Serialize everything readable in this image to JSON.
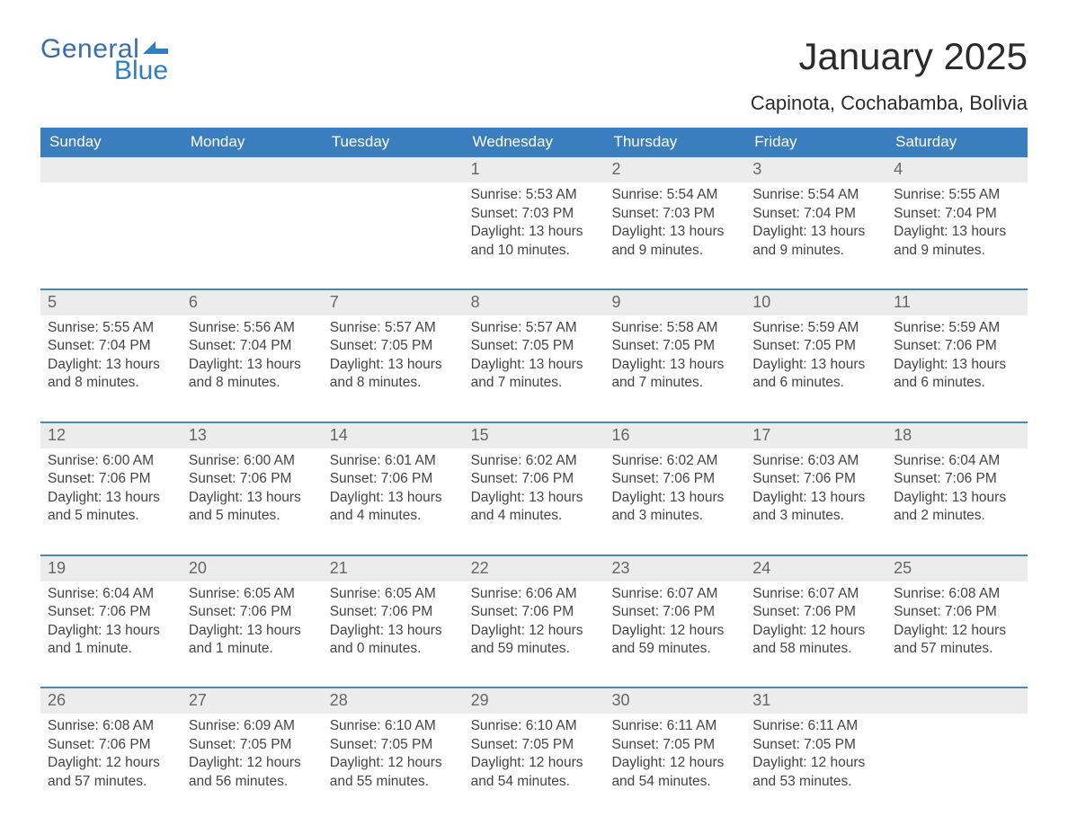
{
  "brand": {
    "text1": "General",
    "text2": "Blue",
    "color1": "#3b6fa8",
    "color2": "#2f80c2",
    "flag_color": "#2f80c2"
  },
  "title": "January 2025",
  "location": "Capinota, Cochabamba, Bolivia",
  "colors": {
    "header_bg": "#3b7ebf",
    "header_text": "#ffffff",
    "week_divider": "#4a86bf",
    "daynum_bg": "#ececec",
    "daynum_text": "#666666",
    "body_text": "#444444",
    "page_bg": "#ffffff"
  },
  "typography": {
    "title_fontsize": 42,
    "location_fontsize": 22,
    "dow_fontsize": 17,
    "daynum_fontsize": 18,
    "body_fontsize": 15.5
  },
  "days_of_week": [
    "Sunday",
    "Monday",
    "Tuesday",
    "Wednesday",
    "Thursday",
    "Friday",
    "Saturday"
  ],
  "labels": {
    "sunrise": "Sunrise:",
    "sunset": "Sunset:",
    "daylight": "Daylight:"
  },
  "weeks": [
    [
      {
        "num": "",
        "sunrise": "",
        "sunset": "",
        "daylight": ""
      },
      {
        "num": "",
        "sunrise": "",
        "sunset": "",
        "daylight": ""
      },
      {
        "num": "",
        "sunrise": "",
        "sunset": "",
        "daylight": ""
      },
      {
        "num": "1",
        "sunrise": "5:53 AM",
        "sunset": "7:03 PM",
        "daylight": "13 hours and 10 minutes."
      },
      {
        "num": "2",
        "sunrise": "5:54 AM",
        "sunset": "7:03 PM",
        "daylight": "13 hours and 9 minutes."
      },
      {
        "num": "3",
        "sunrise": "5:54 AM",
        "sunset": "7:04 PM",
        "daylight": "13 hours and 9 minutes."
      },
      {
        "num": "4",
        "sunrise": "5:55 AM",
        "sunset": "7:04 PM",
        "daylight": "13 hours and 9 minutes."
      }
    ],
    [
      {
        "num": "5",
        "sunrise": "5:55 AM",
        "sunset": "7:04 PM",
        "daylight": "13 hours and 8 minutes."
      },
      {
        "num": "6",
        "sunrise": "5:56 AM",
        "sunset": "7:04 PM",
        "daylight": "13 hours and 8 minutes."
      },
      {
        "num": "7",
        "sunrise": "5:57 AM",
        "sunset": "7:05 PM",
        "daylight": "13 hours and 8 minutes."
      },
      {
        "num": "8",
        "sunrise": "5:57 AM",
        "sunset": "7:05 PM",
        "daylight": "13 hours and 7 minutes."
      },
      {
        "num": "9",
        "sunrise": "5:58 AM",
        "sunset": "7:05 PM",
        "daylight": "13 hours and 7 minutes."
      },
      {
        "num": "10",
        "sunrise": "5:59 AM",
        "sunset": "7:05 PM",
        "daylight": "13 hours and 6 minutes."
      },
      {
        "num": "11",
        "sunrise": "5:59 AM",
        "sunset": "7:06 PM",
        "daylight": "13 hours and 6 minutes."
      }
    ],
    [
      {
        "num": "12",
        "sunrise": "6:00 AM",
        "sunset": "7:06 PM",
        "daylight": "13 hours and 5 minutes."
      },
      {
        "num": "13",
        "sunrise": "6:00 AM",
        "sunset": "7:06 PM",
        "daylight": "13 hours and 5 minutes."
      },
      {
        "num": "14",
        "sunrise": "6:01 AM",
        "sunset": "7:06 PM",
        "daylight": "13 hours and 4 minutes."
      },
      {
        "num": "15",
        "sunrise": "6:02 AM",
        "sunset": "7:06 PM",
        "daylight": "13 hours and 4 minutes."
      },
      {
        "num": "16",
        "sunrise": "6:02 AM",
        "sunset": "7:06 PM",
        "daylight": "13 hours and 3 minutes."
      },
      {
        "num": "17",
        "sunrise": "6:03 AM",
        "sunset": "7:06 PM",
        "daylight": "13 hours and 3 minutes."
      },
      {
        "num": "18",
        "sunrise": "6:04 AM",
        "sunset": "7:06 PM",
        "daylight": "13 hours and 2 minutes."
      }
    ],
    [
      {
        "num": "19",
        "sunrise": "6:04 AM",
        "sunset": "7:06 PM",
        "daylight": "13 hours and 1 minute."
      },
      {
        "num": "20",
        "sunrise": "6:05 AM",
        "sunset": "7:06 PM",
        "daylight": "13 hours and 1 minute."
      },
      {
        "num": "21",
        "sunrise": "6:05 AM",
        "sunset": "7:06 PM",
        "daylight": "13 hours and 0 minutes."
      },
      {
        "num": "22",
        "sunrise": "6:06 AM",
        "sunset": "7:06 PM",
        "daylight": "12 hours and 59 minutes."
      },
      {
        "num": "23",
        "sunrise": "6:07 AM",
        "sunset": "7:06 PM",
        "daylight": "12 hours and 59 minutes."
      },
      {
        "num": "24",
        "sunrise": "6:07 AM",
        "sunset": "7:06 PM",
        "daylight": "12 hours and 58 minutes."
      },
      {
        "num": "25",
        "sunrise": "6:08 AM",
        "sunset": "7:06 PM",
        "daylight": "12 hours and 57 minutes."
      }
    ],
    [
      {
        "num": "26",
        "sunrise": "6:08 AM",
        "sunset": "7:06 PM",
        "daylight": "12 hours and 57 minutes."
      },
      {
        "num": "27",
        "sunrise": "6:09 AM",
        "sunset": "7:05 PM",
        "daylight": "12 hours and 56 minutes."
      },
      {
        "num": "28",
        "sunrise": "6:10 AM",
        "sunset": "7:05 PM",
        "daylight": "12 hours and 55 minutes."
      },
      {
        "num": "29",
        "sunrise": "6:10 AM",
        "sunset": "7:05 PM",
        "daylight": "12 hours and 54 minutes."
      },
      {
        "num": "30",
        "sunrise": "6:11 AM",
        "sunset": "7:05 PM",
        "daylight": "12 hours and 54 minutes."
      },
      {
        "num": "31",
        "sunrise": "6:11 AM",
        "sunset": "7:05 PM",
        "daylight": "12 hours and 53 minutes."
      },
      {
        "num": "",
        "sunrise": "",
        "sunset": "",
        "daylight": ""
      }
    ]
  ]
}
